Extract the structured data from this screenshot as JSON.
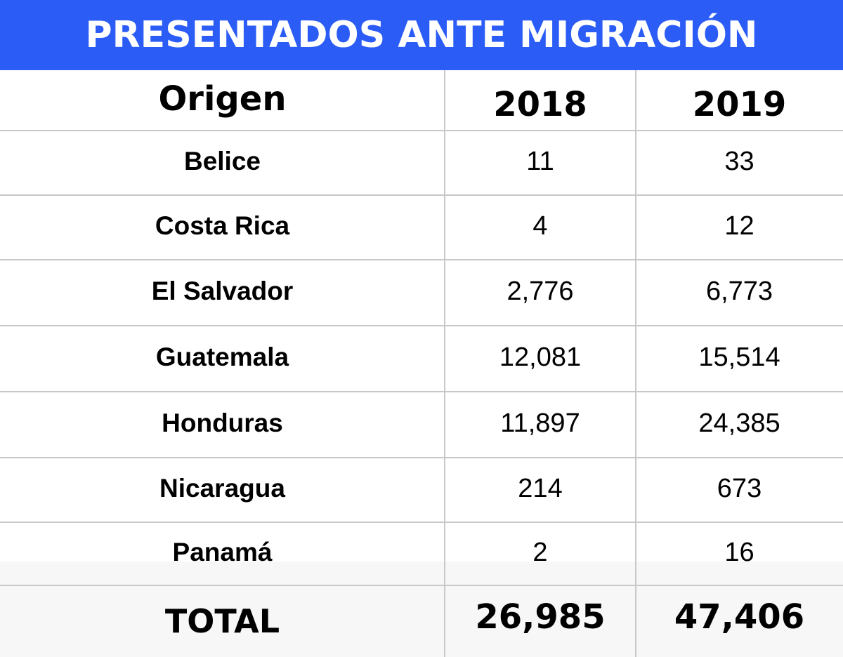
{
  "title": "PRESENTADOS ANTE MIGRACIÓN",
  "colors": {
    "title_bg": "#2b5cf6",
    "title_text": "#ffffff",
    "grid": "#c8c8c8",
    "footer_bg": "#f7f7f7",
    "text": "#000000"
  },
  "chart_data": {
    "type": "table",
    "title": "PRESENTADOS ANTE MIGRACIÓN",
    "columns": [
      "Origen",
      "2018",
      "2019"
    ],
    "rows": [
      {
        "origin": "Belice",
        "y2018": "11",
        "y2019": "33"
      },
      {
        "origin": "Costa Rica",
        "y2018": "4",
        "y2019": "12"
      },
      {
        "origin": "El Salvador",
        "y2018": "2,776",
        "y2019": "6,773"
      },
      {
        "origin": "Guatemala",
        "y2018": "12,081",
        "y2019": "15,514"
      },
      {
        "origin": "Honduras",
        "y2018": "11,897",
        "y2019": "24,385"
      },
      {
        "origin": "Nicaragua",
        "y2018": "214",
        "y2019": "673"
      },
      {
        "origin": "Panamá",
        "y2018": "2",
        "y2019": "16"
      }
    ],
    "total": {
      "label": "TOTAL",
      "y2018": "26,985",
      "y2019": "47,406"
    }
  }
}
